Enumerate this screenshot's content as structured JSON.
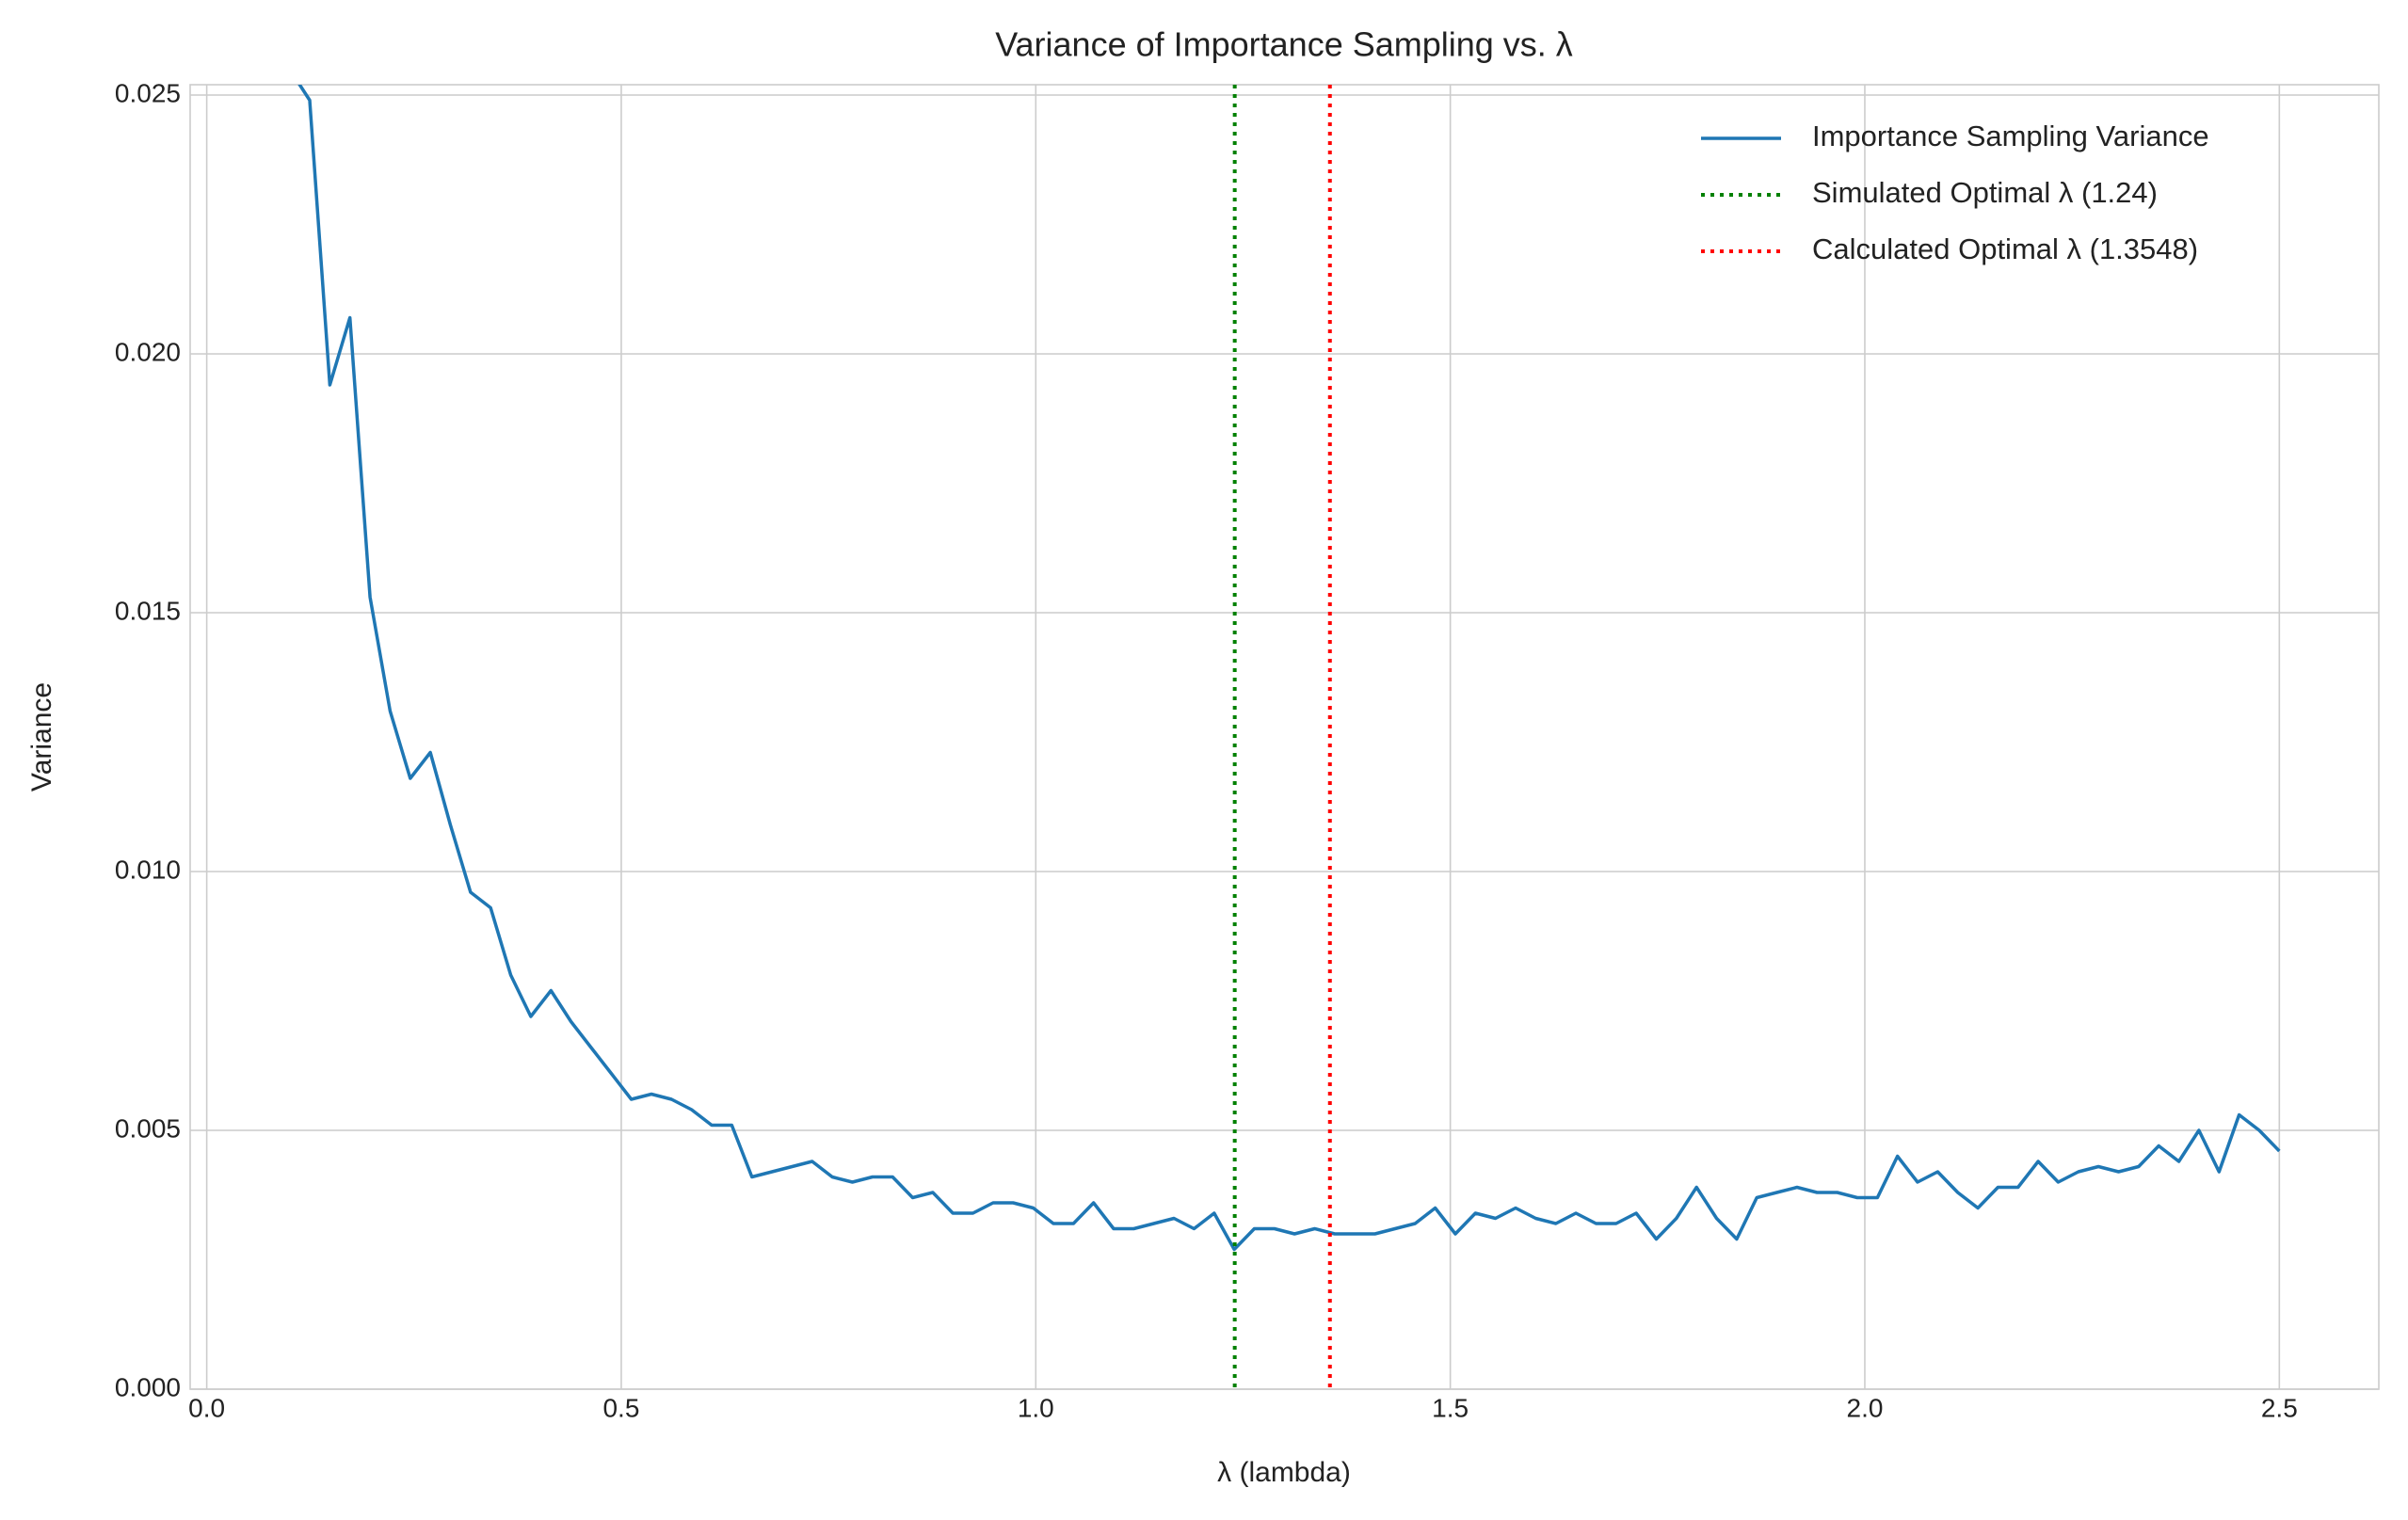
{
  "chart_data": {
    "type": "line",
    "title": "Variance of Importance Sampling vs. λ",
    "x_label": "λ (lambda)",
    "y_label": "Variance",
    "x": [
      0.1,
      0.1242,
      0.1485,
      0.1727,
      0.197,
      0.2212,
      0.2455,
      0.2697,
      0.2939,
      0.3182,
      0.3424,
      0.3667,
      0.3909,
      0.4152,
      0.4394,
      0.4636,
      0.4879,
      0.5121,
      0.5364,
      0.5606,
      0.5848,
      0.6091,
      0.6333,
      0.6576,
      0.6818,
      0.7061,
      0.7303,
      0.7545,
      0.7788,
      0.803,
      0.8273,
      0.8515,
      0.8758,
      0.9,
      0.9242,
      0.9485,
      0.9727,
      0.997,
      1.0212,
      1.0455,
      1.0697,
      1.0939,
      1.1182,
      1.1424,
      1.1667,
      1.1909,
      1.2152,
      1.2394,
      1.2636,
      1.2879,
      1.3121,
      1.3364,
      1.3606,
      1.3848,
      1.4091,
      1.4333,
      1.4576,
      1.4818,
      1.5061,
      1.5303,
      1.5545,
      1.5788,
      1.603,
      1.6273,
      1.6515,
      1.6758,
      1.7,
      1.7242,
      1.7485,
      1.7727,
      1.797,
      1.8212,
      1.8455,
      1.8697,
      1.8939,
      1.9182,
      1.9424,
      1.9667,
      1.9909,
      2.0152,
      2.0394,
      2.0636,
      2.0879,
      2.1121,
      2.1364,
      2.1606,
      2.1848,
      2.2091,
      2.2333,
      2.2576,
      2.2818,
      2.3061,
      2.3303,
      2.3545,
      2.3788,
      2.403,
      2.4273,
      2.4515,
      2.4758,
      2.5
    ],
    "series": [
      {
        "name": "Importance Sampling Variance",
        "color": "#1f77b4",
        "values": [
          0.0255,
          0.0249,
          0.0194,
          0.0207,
          0.0153,
          0.0131,
          0.0118,
          0.0123,
          0.0109,
          0.0096,
          0.0093,
          0.008,
          0.0072,
          0.0077,
          0.0071,
          0.0066,
          0.0061,
          0.0056,
          0.0057,
          0.0056,
          0.0054,
          0.0051,
          0.0051,
          0.0041,
          0.0042,
          0.0043,
          0.0044,
          0.0041,
          0.004,
          0.0041,
          0.0041,
          0.0037,
          0.0038,
          0.0034,
          0.0034,
          0.0036,
          0.0036,
          0.0035,
          0.0032,
          0.0032,
          0.0036,
          0.0031,
          0.0031,
          0.0032,
          0.0033,
          0.0031,
          0.0034,
          0.0027,
          0.0031,
          0.0031,
          0.003,
          0.0031,
          0.003,
          0.003,
          0.003,
          0.0031,
          0.0032,
          0.0035,
          0.003,
          0.0034,
          0.0033,
          0.0035,
          0.0033,
          0.0032,
          0.0034,
          0.0032,
          0.0032,
          0.0034,
          0.0029,
          0.0033,
          0.0039,
          0.0033,
          0.0029,
          0.0037,
          0.0038,
          0.0039,
          0.0038,
          0.0038,
          0.0037,
          0.0037,
          0.0045,
          0.004,
          0.0042,
          0.0038,
          0.0035,
          0.0039,
          0.0039,
          0.0044,
          0.004,
          0.0042,
          0.0043,
          0.0042,
          0.0043,
          0.0047,
          0.0044,
          0.005,
          0.0042,
          0.0053,
          0.005,
          0.0046
        ]
      }
    ],
    "vlines": [
      {
        "name": "Simulated Optimal λ (1.24)",
        "x": 1.24,
        "color": "green"
      },
      {
        "name": "Calculated Optimal λ (1.3548)",
        "x": 1.3548,
        "color": "red"
      }
    ],
    "xlim": [
      -0.02,
      2.62
    ],
    "ylim": [
      0,
      0.0252
    ],
    "xticks": [
      {
        "value": 0,
        "label": "0.0"
      },
      0.5,
      {
        "value": 1,
        "label": "1.0"
      },
      1.5,
      {
        "value": 2,
        "label": "2.0"
      },
      2.5
    ],
    "yticks": [
      {
        "value": 0,
        "label": "0.000"
      },
      {
        "value": 0.005,
        "label": "0.005"
      },
      {
        "value": 0.01,
        "label": "0.010"
      },
      {
        "value": 0.015,
        "label": "0.015"
      },
      {
        "value": 0.02,
        "label": "0.020"
      },
      {
        "value": 0.025,
        "label": "0.025"
      }
    ],
    "grid": true,
    "legend": "upper right"
  }
}
